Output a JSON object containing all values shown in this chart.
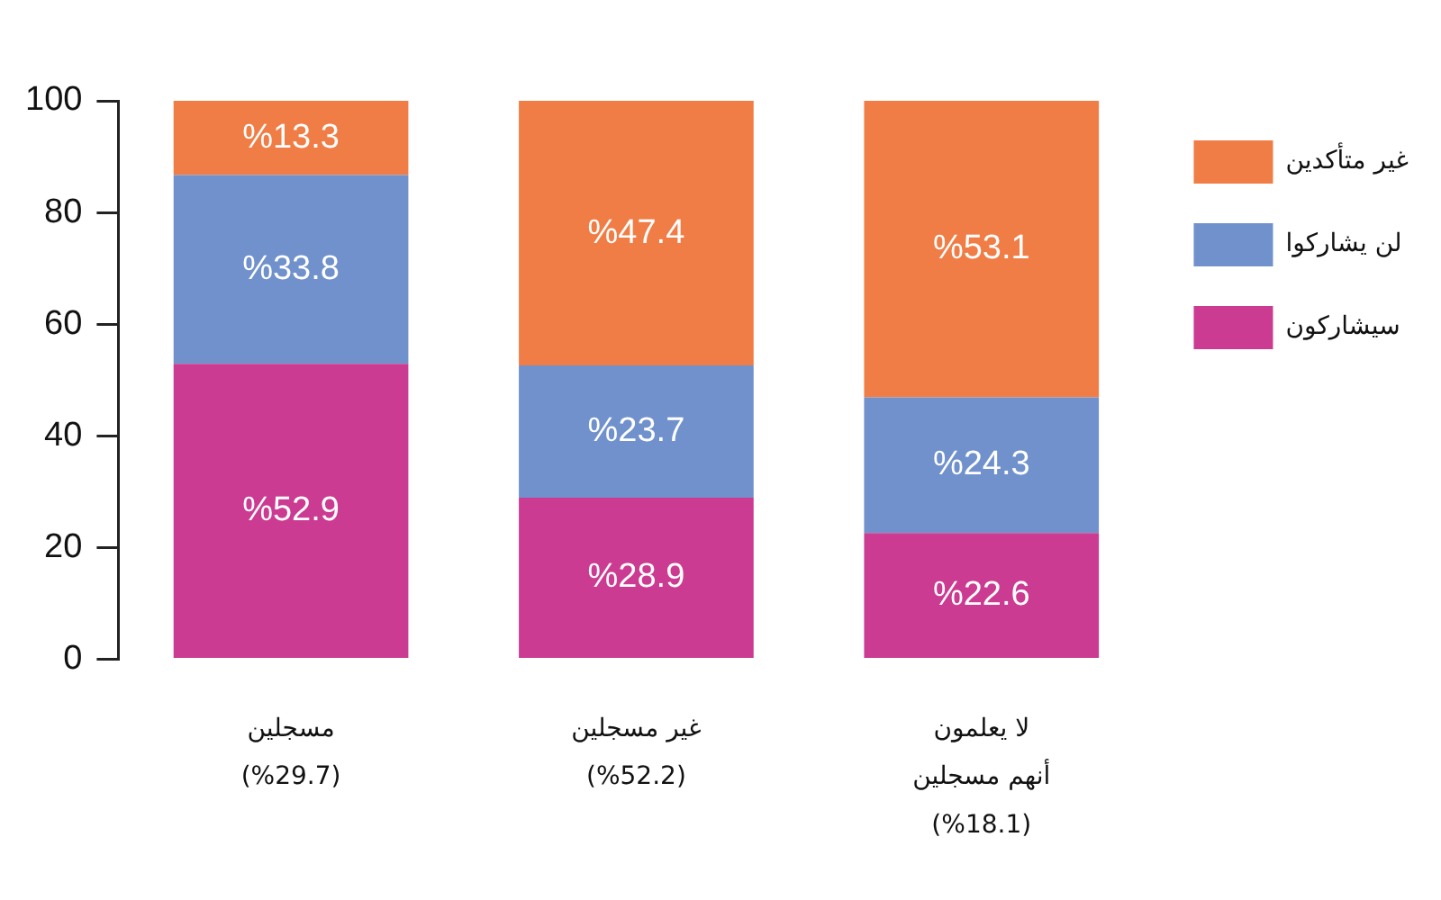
{
  "chart_data": {
    "type": "bar",
    "stacked": true,
    "categories": [
      "مسجلين\n(%29.7)",
      "غير مسجلين\n(%52.2)",
      "لا يعلمون\nأنهم مسجلين\n(%18.1)"
    ],
    "series": [
      {
        "name": "سيشاركون",
        "color": "#cc3b92",
        "values": [
          52.9,
          28.9,
          22.6
        ],
        "value_labels": [
          "%52.9",
          "%28.9",
          "%22.6"
        ]
      },
      {
        "name": "لن يشاركوا",
        "color": "#7091cc",
        "values": [
          33.8,
          23.7,
          24.3
        ],
        "value_labels": [
          "%33.8",
          "%23.7",
          "%24.3"
        ]
      },
      {
        "name": "غير متأكدين",
        "color": "#f07d45",
        "values": [
          13.3,
          47.4,
          53.1
        ],
        "value_labels": [
          "%13.3",
          "%47.4",
          "%53.1"
        ]
      }
    ],
    "ylim": [
      0,
      100
    ],
    "yticks": [
      0,
      20,
      40,
      60,
      80,
      100
    ],
    "legend": "top right"
  }
}
